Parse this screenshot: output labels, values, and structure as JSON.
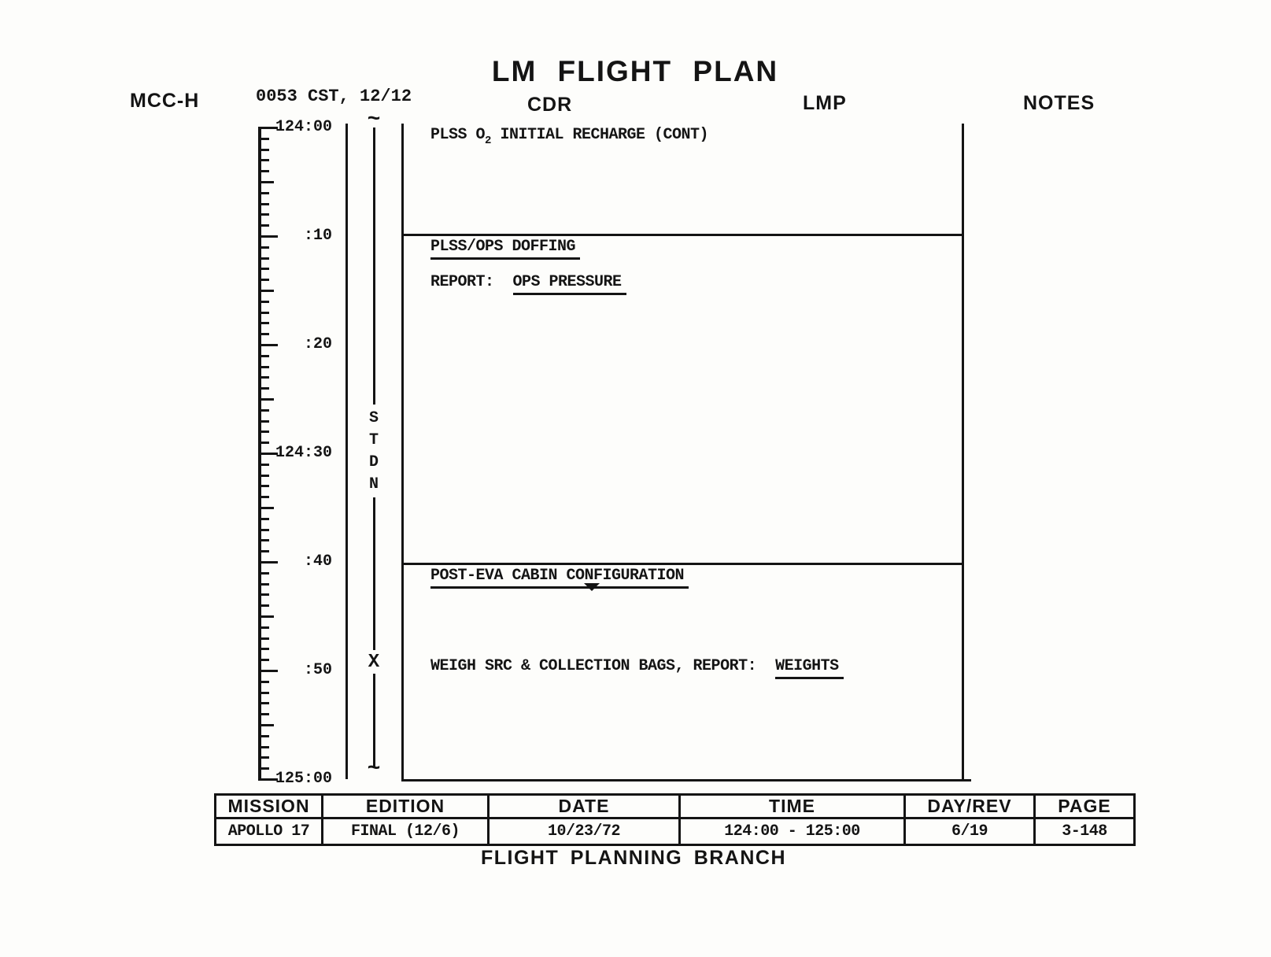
{
  "header": {
    "title": "LM FLIGHT PLAN",
    "mcc": "MCC-H",
    "time_tag": "0053 CST, 12/12",
    "cdr": "CDR",
    "lmp": "LMP",
    "notes": "NOTES"
  },
  "timeline": {
    "tick_labels": [
      "124:00",
      ":10",
      ":20",
      "124:30",
      ":40",
      ":50",
      "125:00"
    ],
    "station": {
      "letters": [
        "S",
        "T",
        "D",
        "N"
      ],
      "marker": "X",
      "curl": "~"
    }
  },
  "activities": {
    "recharge": {
      "prefix": "PLSS O",
      "sub": "2",
      "rest": "INITIAL RECHARGE (CONT)"
    },
    "doffing": {
      "title": "PLSS/OPS DOFFING",
      "report_label": "REPORT:",
      "report_value": "OPS PRESSURE"
    },
    "post_eva": {
      "title": "POST-EVA CABIN CONFIGURATION"
    },
    "weigh": {
      "label": "WEIGH SRC & COLLECTION BAGS, REPORT:",
      "value": "WEIGHTS"
    }
  },
  "footer_table": {
    "headers": [
      "MISSION",
      "EDITION",
      "DATE",
      "TIME",
      "DAY/REV",
      "PAGE"
    ],
    "values": [
      "APOLLO 17",
      "FINAL (12/6)",
      "10/23/72",
      "124:00 - 125:00",
      "6/19",
      "3-148"
    ]
  },
  "footer": {
    "branch": "FLIGHT PLANNING BRANCH"
  }
}
